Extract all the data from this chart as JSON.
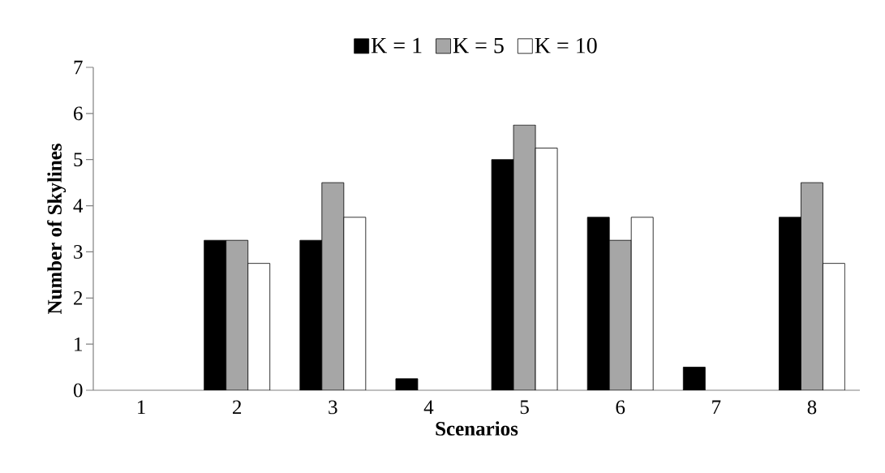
{
  "chart_data": {
    "type": "bar",
    "xlabel": "Scenarios",
    "ylabel": "Number of Skylines",
    "categories": [
      "1",
      "2",
      "3",
      "4",
      "5",
      "6",
      "7",
      "8"
    ],
    "series": [
      {
        "name": "K = 1",
        "color": "#000000",
        "values": [
          0,
          3.25,
          3.25,
          0.25,
          5,
          3.75,
          0.5,
          3.75
        ]
      },
      {
        "name": "K = 5",
        "color": "#a6a6a6",
        "values": [
          0,
          3.25,
          4.5,
          0,
          5.75,
          3.25,
          0,
          4.5
        ]
      },
      {
        "name": "K = 10",
        "color": "#ffffff",
        "values": [
          0,
          2.75,
          3.75,
          0,
          5.25,
          3.75,
          0,
          2.75
        ]
      }
    ],
    "ylim": [
      0,
      7
    ],
    "yticks": [
      0,
      1,
      2,
      3,
      4,
      5,
      6,
      7
    ],
    "grid": false,
    "legend": "top"
  }
}
